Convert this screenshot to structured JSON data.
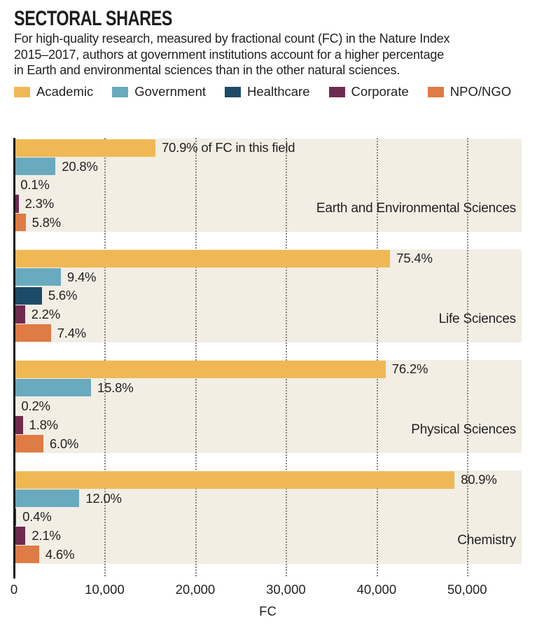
{
  "header": {
    "title": "SECTORAL SHARES",
    "subtitle_lines": [
      "For high-quality research, measured by fractional count (FC) in the Nature Index",
      "2015–2017, authors at government institutions account for a higher percentage",
      "in Earth and environmental sciences than in the other natural sciences."
    ]
  },
  "legend": [
    {
      "label": "Academic",
      "color": "#f0b855"
    },
    {
      "label": "Government",
      "color": "#69aabf"
    },
    {
      "label": "Healthcare",
      "color": "#1d4b67"
    },
    {
      "label": "Corporate",
      "color": "#6f2b4f"
    },
    {
      "label": "NPO/NGO",
      "color": "#df7b44"
    }
  ],
  "colors": {
    "band_background": "#f2eee4",
    "gridline": "#8a857c",
    "axis": "#111111",
    "text": "#231f20"
  },
  "chart_data": {
    "type": "bar",
    "orientation": "horizontal",
    "title": "SECTORAL SHARES",
    "xlabel": "FC",
    "xlim": [
      0,
      56000
    ],
    "xticks": [
      0,
      10000,
      20000,
      30000,
      40000,
      50000
    ],
    "xtick_labels": [
      "0",
      "10,000",
      "20,000",
      "30,000",
      "40,000",
      "50,000"
    ],
    "grid": "dotted vertical gridlines at each x tick",
    "legend_position": "top",
    "sectors": [
      "Academic",
      "Government",
      "Healthcare",
      "Corporate",
      "NPO/NGO"
    ],
    "groups": [
      {
        "field": "Earth and Environmental Sciences",
        "percents": [
          70.9,
          20.8,
          0.1,
          2.3,
          5.8
        ],
        "percent_labels": [
          "70.9% of FC in this field",
          "20.8%",
          "0.1%",
          "2.3%",
          "5.8%"
        ],
        "fc_estimates": [
          15600,
          4580,
          20,
          510,
          1280
        ]
      },
      {
        "field": "Life Sciences",
        "percents": [
          75.4,
          9.4,
          5.6,
          2.2,
          7.4
        ],
        "percent_labels": [
          "75.4%",
          "9.4%",
          "5.6%",
          "2.2%",
          "7.4%"
        ],
        "fc_estimates": [
          41500,
          5170,
          3080,
          1210,
          4070
        ]
      },
      {
        "field": "Physical Sciences",
        "percents": [
          76.2,
          15.8,
          0.2,
          1.8,
          6.0
        ],
        "percent_labels": [
          "76.2%",
          "15.8%",
          "0.2%",
          "1.8%",
          "6.0%"
        ],
        "fc_estimates": [
          41000,
          8500,
          110,
          970,
          3230
        ]
      },
      {
        "field": "Chemistry",
        "percents": [
          80.9,
          12.0,
          0.4,
          2.1,
          4.6
        ],
        "percent_labels": [
          "80.9%",
          "12.0%",
          "0.4%",
          "2.1%",
          "4.6%"
        ],
        "fc_estimates": [
          48600,
          7210,
          240,
          1260,
          2770
        ]
      }
    ]
  }
}
